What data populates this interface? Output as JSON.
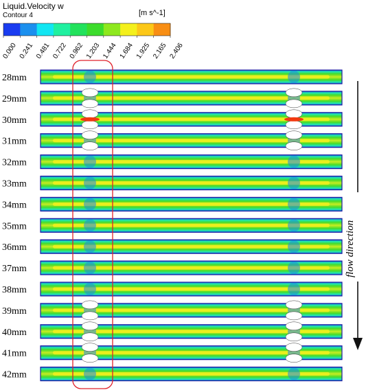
{
  "legend": {
    "title": "Liquid.Velocity w",
    "subtitle": "Contour 4",
    "unit": "[m s^-1]",
    "ticks": [
      "0.000",
      "0.241",
      "0.481",
      "0.722",
      "0.962",
      "1.203",
      "1.444",
      "1.684",
      "1.925",
      "2.165",
      "2.406"
    ],
    "colors": [
      "#1a3cf0",
      "#1c90ee",
      "#12e6f2",
      "#20f0a0",
      "#22e25c",
      "#3cdc2c",
      "#8ee81e",
      "#f4f01c",
      "#fcc818",
      "#f88e14",
      "#f23a10"
    ]
  },
  "rows": [
    {
      "label": "28mm"
    },
    {
      "label": "29mm"
    },
    {
      "label": "30mm"
    },
    {
      "label": "31mm"
    },
    {
      "label": "32mm"
    },
    {
      "label": "33mm"
    },
    {
      "label": "34mm"
    },
    {
      "label": "35mm"
    },
    {
      "label": "36mm"
    },
    {
      "label": "37mm"
    },
    {
      "label": "38mm"
    },
    {
      "label": "39mm"
    },
    {
      "label": "40mm"
    },
    {
      "label": "41mm"
    },
    {
      "label": "42mm"
    }
  ],
  "flow_label": "flow direction",
  "colors": {
    "channel_border": "#1a1aa0",
    "channel_fill": "#3cdc2c",
    "core": "#f4f01c",
    "highlight_box": "#e0202a",
    "arrow": "#111111"
  }
}
